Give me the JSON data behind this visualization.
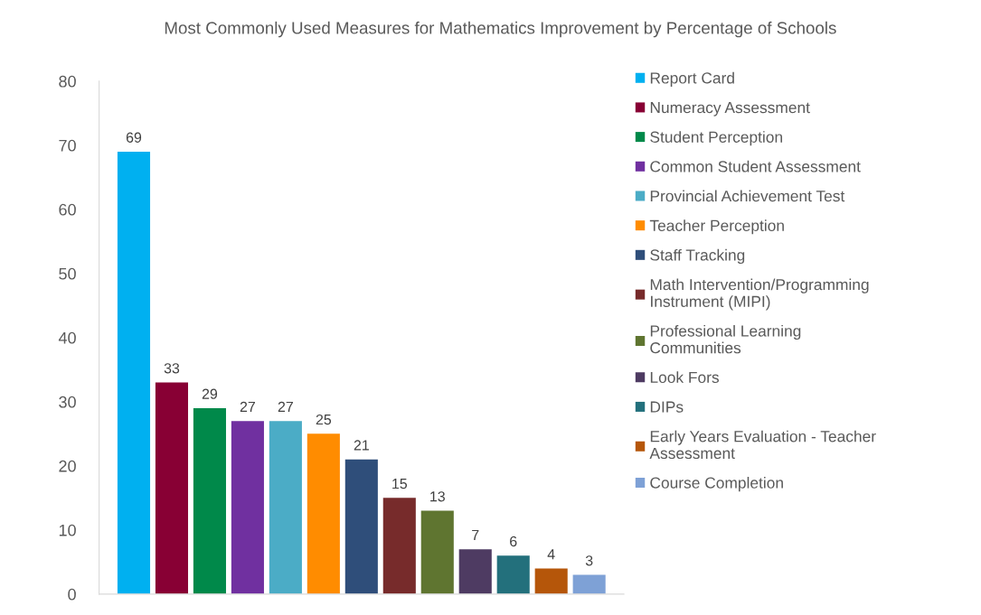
{
  "chart_data": {
    "type": "bar",
    "title": "Most Commonly Used Measures for Mathematics Improvement by Percentage of Schools",
    "categories": [
      null
    ],
    "series": [
      {
        "name": "Report Card",
        "color": "#00b0f0",
        "values": [
          69
        ]
      },
      {
        "name": "Numeracy Assessment",
        "color": "#880034",
        "values": [
          33
        ]
      },
      {
        "name": "Student Perception",
        "color": "#00894a",
        "values": [
          29
        ]
      },
      {
        "name": "Common Student Assessment",
        "color": "#7030a0",
        "values": [
          27
        ]
      },
      {
        "name": "Provincial Achievement Test",
        "color": "#4bacc6",
        "values": [
          27
        ]
      },
      {
        "name": "Teacher Perception",
        "color": "#ff8c00",
        "values": [
          25
        ]
      },
      {
        "name": "Staff Tracking",
        "color": "#2f4e7a",
        "values": [
          21
        ]
      },
      {
        "name": "Math Intervention/Programming\nInstrument (MIPI)",
        "color": "#772b2b",
        "values": [
          15
        ]
      },
      {
        "name": "Professional Learning\nCommunities",
        "color": "#5f7530",
        "values": [
          13
        ]
      },
      {
        "name": "Look Fors",
        "color": "#4e3b62",
        "values": [
          7
        ]
      },
      {
        "name": "DIPs",
        "color": "#23707c",
        "values": [
          6
        ]
      },
      {
        "name": "Early Years Evaluation - Teacher\nAssessment",
        "color": "#b5560a",
        "values": [
          4
        ]
      },
      {
        "name": "Course Completion",
        "color": "#7ea1d6",
        "values": [
          3
        ]
      }
    ],
    "ylim": [
      0,
      80
    ],
    "yticks": [
      0,
      10,
      20,
      30,
      40,
      50,
      60,
      70,
      80
    ],
    "grid": false,
    "legend": "right",
    "data_labels": true
  }
}
